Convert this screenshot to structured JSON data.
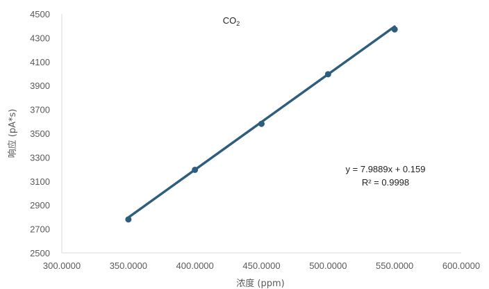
{
  "chart_data": {
    "type": "scatter",
    "title": "CO",
    "title_subscript": "2",
    "xlabel": "浓度 (ppm)",
    "ylabel": "响应 (pA*s)",
    "xlim": [
      300,
      600
    ],
    "ylim": [
      2500,
      4500
    ],
    "x_ticks": [
      300,
      350,
      400,
      450,
      500,
      550,
      600
    ],
    "x_tick_labels": [
      "300.0000",
      "350.0000",
      "400.0000",
      "450.0000",
      "500.0000",
      "550.0000",
      "600.0000"
    ],
    "y_ticks": [
      2500,
      2700,
      2900,
      3100,
      3300,
      3500,
      3700,
      3900,
      4100,
      4300,
      4500
    ],
    "y_tick_labels": [
      "2500",
      "2700",
      "2900",
      "3100",
      "3300",
      "3500",
      "3700",
      "3900",
      "4100",
      "4300",
      "4500"
    ],
    "grid": false,
    "series": [
      {
        "x": [
          350,
          400,
          450,
          500,
          550
        ],
        "y": [
          2780,
          3195,
          3580,
          3995,
          4370
        ],
        "color": "#2e5e7e"
      }
    ],
    "trendline": {
      "slope": 7.9889,
      "intercept": 0.159,
      "x_range": [
        350,
        550
      ],
      "color": "#2e5e7e"
    },
    "annotations": {
      "equation": "y = 7.9889x + 0.159",
      "r_squared": "R² = 0.9998"
    }
  }
}
